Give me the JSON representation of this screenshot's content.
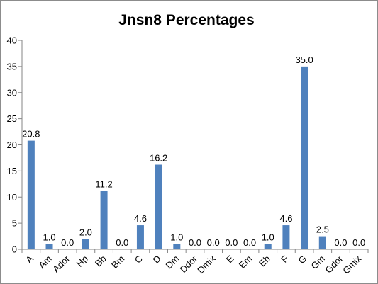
{
  "chart_data": {
    "type": "bar",
    "title": "Jnsn8 Percentages",
    "xlabel": "",
    "ylabel": "",
    "ylim": [
      0,
      40
    ],
    "yticks": [
      0,
      5,
      10,
      15,
      20,
      25,
      30,
      35,
      40
    ],
    "grid": false,
    "legend": "none",
    "bar_color": "#4F81BD",
    "categories": [
      "A",
      "Am",
      "Ador",
      "Hp",
      "Bb",
      "Bm",
      "C",
      "D",
      "Dm",
      "Ddor",
      "Dmix",
      "E",
      "Em",
      "Eb",
      "F",
      "G",
      "Gm",
      "Gdor",
      "Gmix"
    ],
    "values": [
      20.8,
      1.0,
      0.0,
      2.0,
      11.2,
      0.0,
      4.6,
      16.2,
      1.0,
      0.0,
      0.0,
      0.0,
      0.0,
      1.0,
      4.6,
      35.0,
      2.5,
      0.0,
      0.0
    ],
    "data_labels": [
      "20.8",
      "1.0",
      "0.0",
      "2.0",
      "11.2",
      "0.0",
      "4.6",
      "16.2",
      "1.0",
      "0.0",
      "0.0",
      "0.0",
      "0.0",
      "1.0",
      "4.6",
      "35.0",
      "2.5",
      "0.0",
      "0.0"
    ]
  }
}
